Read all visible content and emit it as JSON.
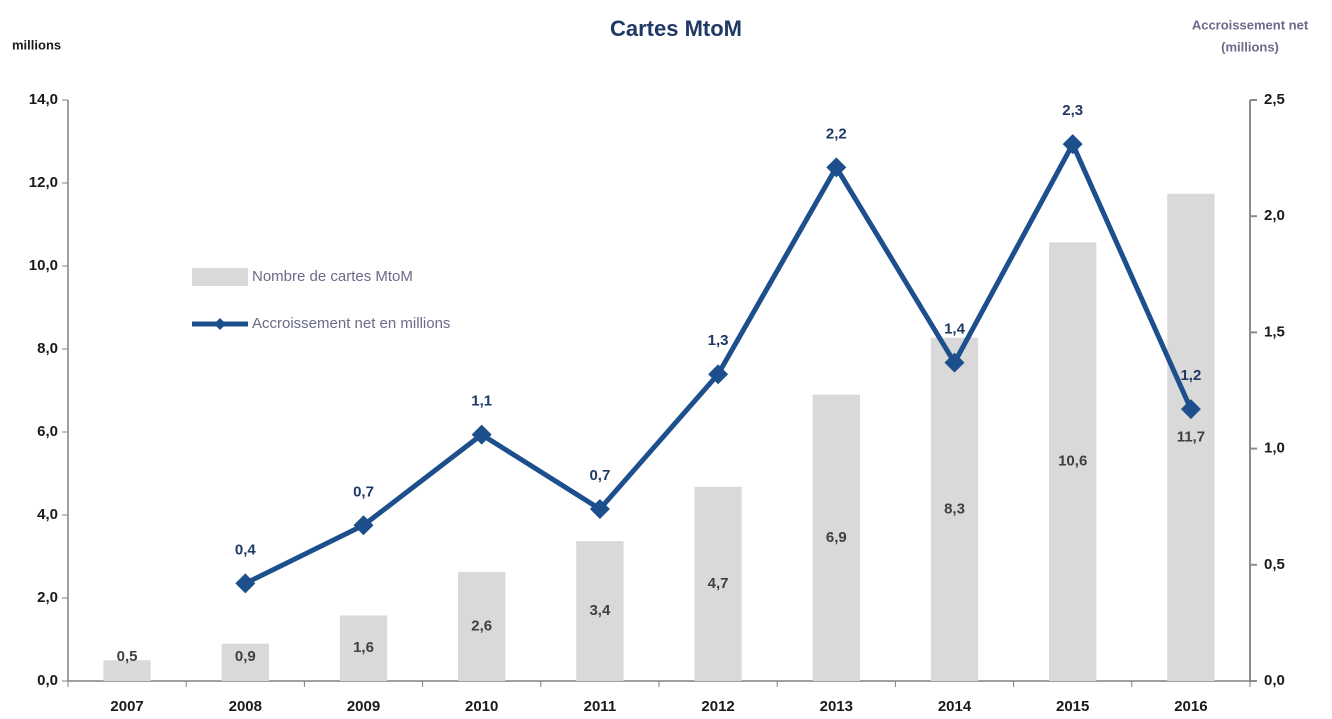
{
  "chart_data": {
    "type": "bar-line",
    "title": "Cartes MtoM",
    "y_label": "millions",
    "y2_label": [
      "Accroissement net",
      "(millions)"
    ],
    "categories": [
      "2007",
      "2008",
      "2009",
      "2010",
      "2011",
      "2012",
      "2013",
      "2014",
      "2015",
      "2016"
    ],
    "series": [
      {
        "name": "Nombre de cartes MtoM",
        "type": "bar",
        "color": "#d9d9d9",
        "values": [
          0.5,
          0.9,
          1.58,
          2.63,
          3.37,
          4.68,
          6.9,
          8.27,
          10.57,
          11.74
        ],
        "value_labels": [
          "0,5",
          "0,9",
          "1,6",
          "2,6",
          "3,4",
          "4,7",
          "6,9",
          "8,3",
          "10,6",
          "11,7"
        ]
      },
      {
        "name": "Accroissement net en millions",
        "type": "line",
        "axis": "y2",
        "color": "#1c4f8c",
        "values": [
          null,
          0.42,
          0.67,
          1.06,
          0.74,
          1.32,
          2.21,
          1.37,
          2.31,
          1.17
        ],
        "value_labels": [
          null,
          "0,4",
          "0,7",
          "1,1",
          "0,7",
          "1,3",
          "2,2",
          "1,4",
          "2,3",
          "1,2"
        ]
      }
    ],
    "ylim": [
      0,
      14
    ],
    "yticks": [
      {
        "value": 0,
        "label": "0,0"
      },
      {
        "value": 2,
        "label": "2,0"
      },
      {
        "value": 4,
        "label": "4,0"
      },
      {
        "value": 6,
        "label": "6,0"
      },
      {
        "value": 8,
        "label": "8,0"
      },
      {
        "value": 10,
        "label": "10,0"
      },
      {
        "value": 12,
        "label": "12,0"
      },
      {
        "value": 14,
        "label": "14,0"
      }
    ],
    "y2lim": [
      0,
      2.5
    ],
    "y2ticks": [
      {
        "value": 0,
        "label": "0,0"
      },
      {
        "value": 0.5,
        "label": "0,5"
      },
      {
        "value": 1,
        "label": "1,0"
      },
      {
        "value": 1.5,
        "label": "1,5"
      },
      {
        "value": 2,
        "label": "2,0"
      },
      {
        "value": 2.5,
        "label": "2,5"
      }
    ],
    "grid": false
  }
}
